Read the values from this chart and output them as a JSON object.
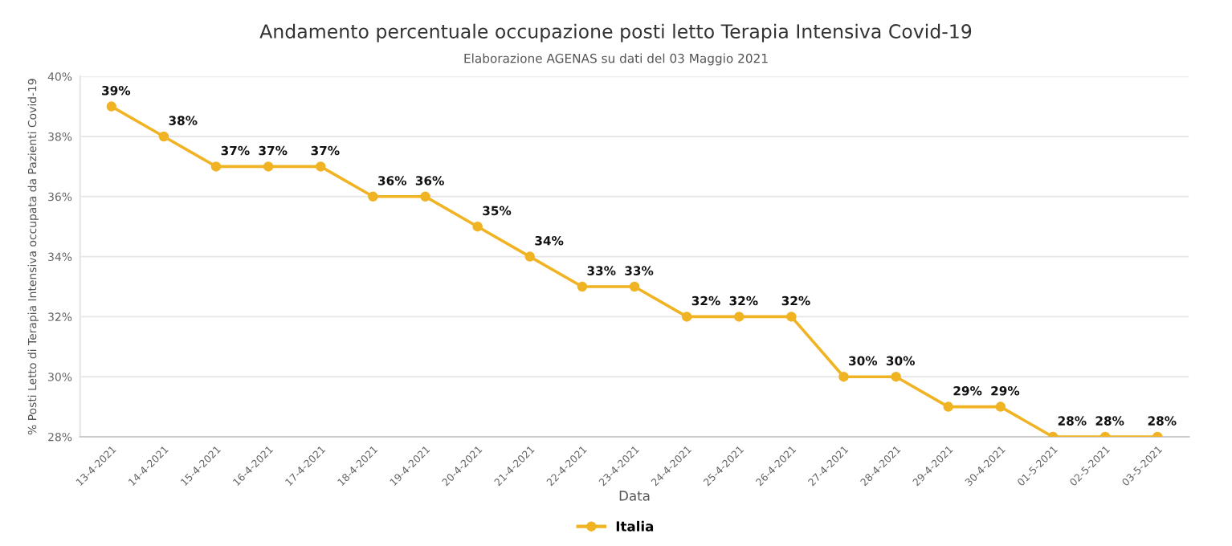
{
  "chart_data": {
    "type": "line",
    "title": "Andamento percentuale occupazione posti letto Terapia Intensiva Covid-19",
    "subtitle": "Elaborazione AGENAS su dati del 03 Maggio 2021",
    "xlabel": "Data",
    "ylabel": "% Posti Letto di Terapia Intensiva occupata da Pazienti Covid-19",
    "categories": [
      "13-4-2021",
      "14-4-2021",
      "15-4-2021",
      "16-4-2021",
      "17-4-2021",
      "18-4-2021",
      "19-4-2021",
      "20-4-2021",
      "21-4-2021",
      "22-4-2021",
      "23-4-2021",
      "24-4-2021",
      "25-4-2021",
      "26-4-2021",
      "27-4-2021",
      "28-4-2021",
      "29-4-2021",
      "30-4-2021",
      "01-5-2021",
      "02-5-2021",
      "03-5-2021"
    ],
    "series": [
      {
        "name": "Italia",
        "color": "#f0b323",
        "values": [
          39,
          38,
          37,
          37,
          37,
          36,
          36,
          35,
          34,
          33,
          33,
          32,
          32,
          32,
          30,
          30,
          29,
          29,
          28,
          28,
          28
        ],
        "value_labels": [
          "39%",
          "38%",
          "37%",
          "37%",
          "37%",
          "36%",
          "36%",
          "35%",
          "34%",
          "33%",
          "33%",
          "32%",
          "32%",
          "32%",
          "30%",
          "30%",
          "29%",
          "29%",
          "28%",
          "28%",
          "28%"
        ]
      }
    ],
    "ylim": [
      28,
      40
    ],
    "yticks": [
      {
        "value": 28,
        "label": "28%"
      },
      {
        "value": 30,
        "label": "30%"
      },
      {
        "value": 32,
        "label": "32%"
      },
      {
        "value": 34,
        "label": "34%"
      },
      {
        "value": 36,
        "label": "36%"
      },
      {
        "value": 38,
        "label": "38%"
      },
      {
        "value": 40,
        "label": "40%"
      }
    ],
    "grid": "y",
    "legend": "bottom",
    "marker": "circle",
    "line_style": "solid"
  }
}
